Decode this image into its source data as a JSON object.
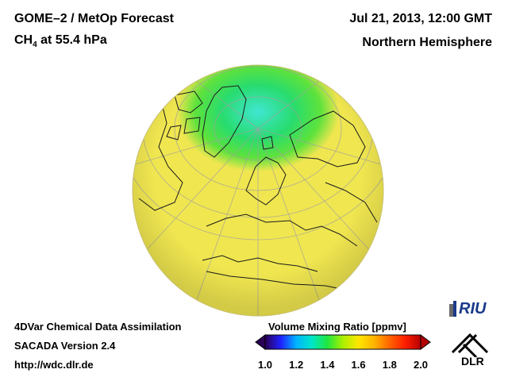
{
  "header": {
    "title": "GOME–2 / MetOp Forecast",
    "species_main": "CH",
    "species_sub": "4",
    "species_rest": " at 55.4 hPa",
    "date": "Jul 21, 2013, 12:00 GMT",
    "region": "Northern Hemisphere"
  },
  "footer": {
    "line1": "4DVar Chemical Data Assimilation",
    "line2": "SACADA Version 2.4",
    "line3": "http://wdc.dlr.de"
  },
  "colorbar": {
    "title": "Volume Mixing Ratio [ppmv]",
    "ticks": [
      "1.0",
      "1.2",
      "1.4",
      "1.6",
      "1.8",
      "2.0"
    ],
    "colors": [
      "#2a0055",
      "#2020ff",
      "#00b4ff",
      "#00e6c8",
      "#20e640",
      "#aaf000",
      "#ffe600",
      "#ffb400",
      "#ff6400",
      "#ff1e00",
      "#b40000"
    ]
  },
  "logos": {
    "riu": "RIU",
    "dlr": "DLR"
  },
  "map": {
    "projection": "orthographic, Northern Hemisphere",
    "background_color": "#f2e650",
    "high_lat_color": "#30e05a",
    "pole_color": "#30e0c8"
  }
}
